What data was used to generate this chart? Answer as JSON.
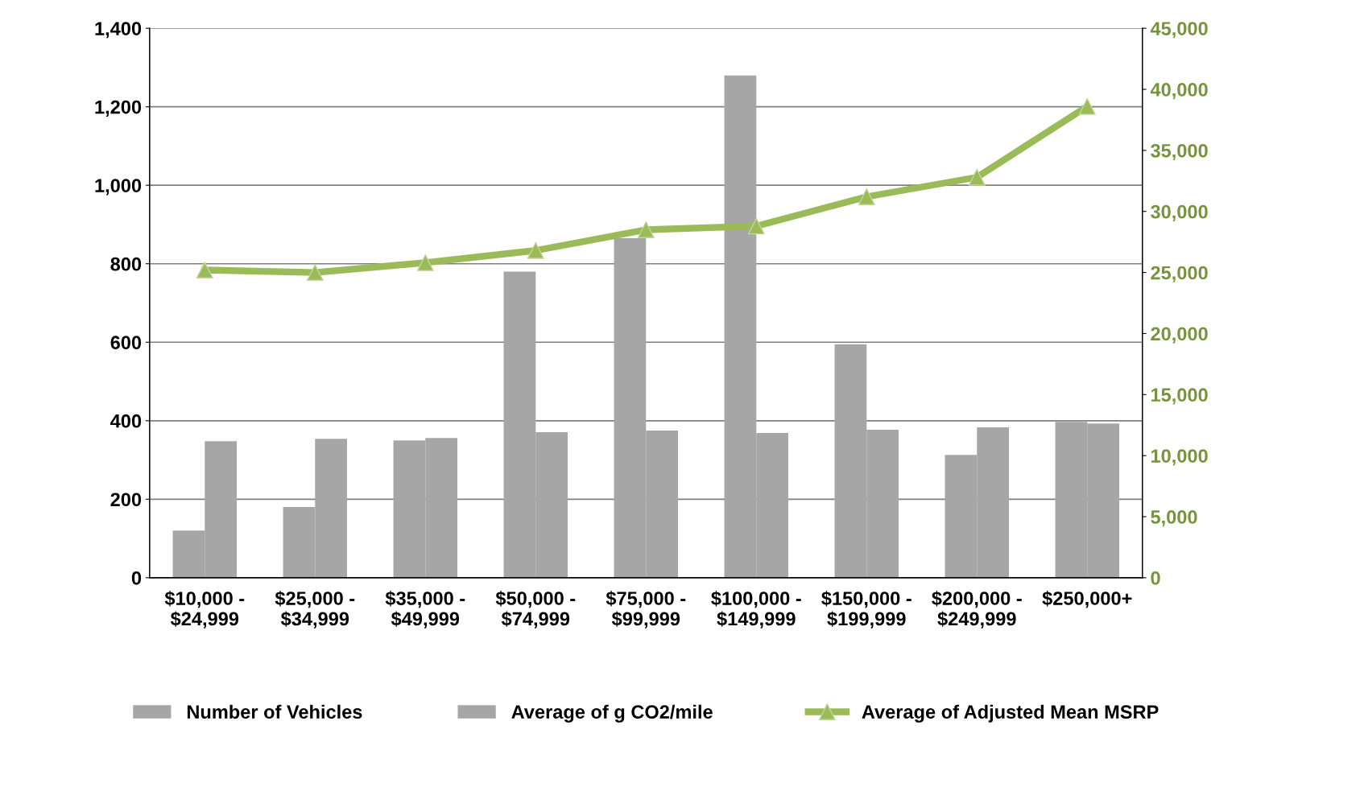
{
  "chart_data": {
    "type": "bar",
    "categories": [
      "$10,000 -\n$24,999",
      "$25,000 -\n$34,999",
      "$35,000 -\n$49,999",
      "$50,000 -\n$74,999",
      "$75,000 -\n$99,999",
      "$100,000 -\n$149,999",
      "$150,000 -\n$199,999",
      "$200,000 -\n$249,999",
      "$250,000+"
    ],
    "series": [
      {
        "name": "Number of Vehicles",
        "color": "#a6a6a6",
        "values": [
          120,
          180,
          350,
          780,
          865,
          1280,
          595,
          313,
          397
        ]
      },
      {
        "name": "Average of g CO2/mile",
        "color": "#a6a6a6",
        "values": [
          348,
          354,
          356,
          371,
          375,
          369,
          377,
          383,
          393
        ]
      },
      {
        "name": "Average of Adjusted Mean MSRP",
        "type": "line",
        "axis": "y2",
        "color": "#9bbb59",
        "marker": "triangle",
        "values": [
          25200,
          25000,
          25800,
          26800,
          28500,
          28800,
          31200,
          32800,
          38600
        ]
      }
    ],
    "ylim": [
      0,
      1400
    ],
    "yticks": [
      0,
      200,
      400,
      600,
      800,
      {
        "value": 1000,
        "label": "1,000"
      },
      {
        "value": 1200,
        "label": "1,200"
      },
      {
        "value": 1400,
        "label": "1,400"
      }
    ],
    "y2lim": [
      0,
      45000
    ],
    "y2ticks": [
      0,
      {
        "value": 5000,
        "label": "5,000"
      },
      {
        "value": 10000,
        "label": "10,000"
      },
      {
        "value": 15000,
        "label": "15,000"
      },
      {
        "value": 20000,
        "label": "20,000"
      },
      {
        "value": 25000,
        "label": "25,000"
      },
      {
        "value": 30000,
        "label": "30,000"
      },
      {
        "value": 35000,
        "label": "35,000"
      },
      {
        "value": 40000,
        "label": "40,000"
      },
      {
        "value": 45000,
        "label": "45,000"
      }
    ],
    "grid": "y",
    "legend": "bottom"
  }
}
